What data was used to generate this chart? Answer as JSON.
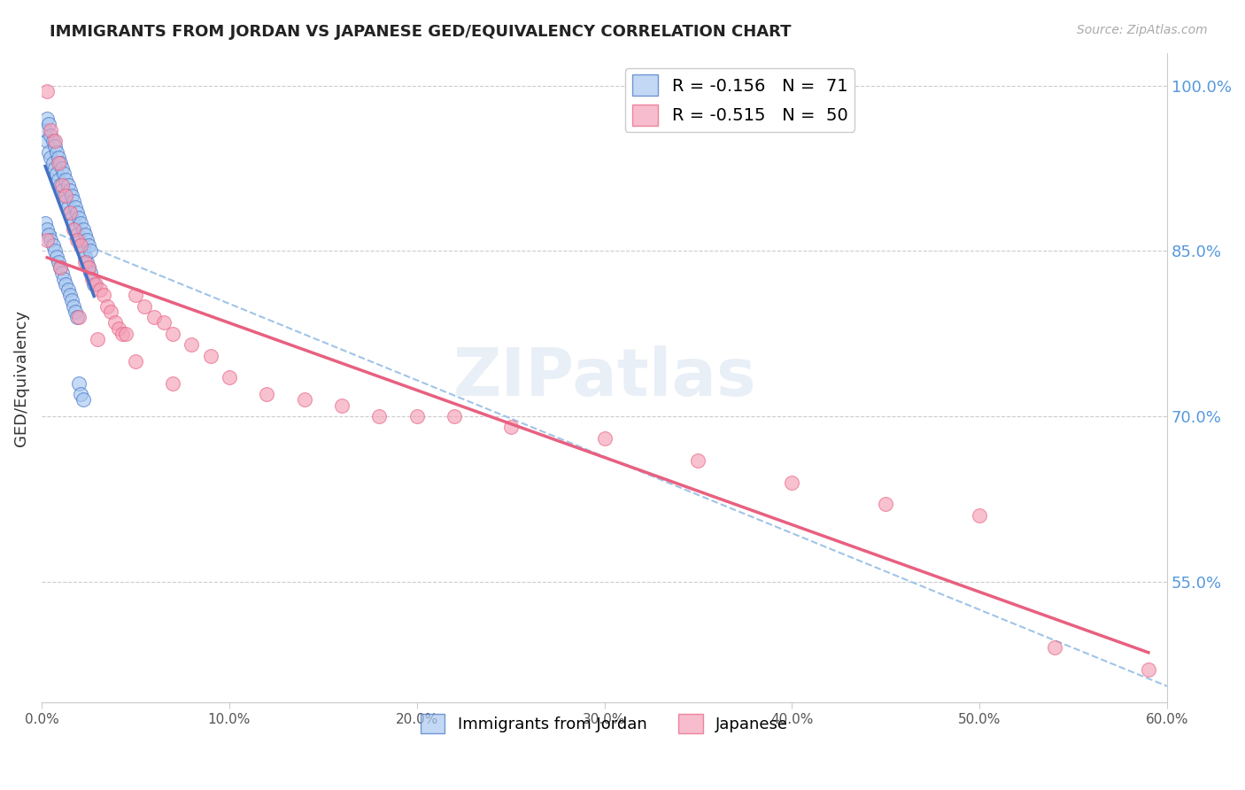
{
  "title": "IMMIGRANTS FROM JORDAN VS JAPANESE GED/EQUIVALENCY CORRELATION CHART",
  "source": "Source: ZipAtlas.com",
  "ylabel": "GED/Equivalency",
  "right_yticks": [
    1.0,
    0.85,
    0.7,
    0.55
  ],
  "right_ytick_labels": [
    "100.0%",
    "85.0%",
    "70.0%",
    "55.0%"
  ],
  "watermark": "ZIPatlas",
  "jordan_color": "#A8C8F0",
  "japanese_color": "#F4A0B8",
  "jordan_line_color": "#4472C4",
  "japanese_line_color": "#E86080",
  "dashed_line_color": "#A0C4E8",
  "jordan_scatter_x": [
    0.002,
    0.003,
    0.003,
    0.004,
    0.004,
    0.005,
    0.005,
    0.006,
    0.006,
    0.007,
    0.007,
    0.008,
    0.008,
    0.009,
    0.009,
    0.01,
    0.01,
    0.011,
    0.011,
    0.012,
    0.012,
    0.013,
    0.013,
    0.014,
    0.014,
    0.015,
    0.015,
    0.016,
    0.016,
    0.017,
    0.017,
    0.018,
    0.018,
    0.019,
    0.019,
    0.02,
    0.02,
    0.021,
    0.021,
    0.022,
    0.022,
    0.023,
    0.023,
    0.024,
    0.024,
    0.025,
    0.025,
    0.026,
    0.026,
    0.028,
    0.002,
    0.003,
    0.004,
    0.005,
    0.006,
    0.007,
    0.008,
    0.009,
    0.01,
    0.011,
    0.012,
    0.013,
    0.014,
    0.015,
    0.016,
    0.017,
    0.018,
    0.019,
    0.02,
    0.021,
    0.022
  ],
  "jordan_scatter_y": [
    0.96,
    0.97,
    0.95,
    0.965,
    0.94,
    0.955,
    0.935,
    0.95,
    0.93,
    0.945,
    0.925,
    0.94,
    0.92,
    0.935,
    0.915,
    0.93,
    0.91,
    0.925,
    0.905,
    0.92,
    0.9,
    0.915,
    0.895,
    0.91,
    0.89,
    0.905,
    0.885,
    0.9,
    0.88,
    0.895,
    0.875,
    0.89,
    0.87,
    0.885,
    0.865,
    0.88,
    0.86,
    0.875,
    0.855,
    0.87,
    0.85,
    0.865,
    0.845,
    0.86,
    0.84,
    0.855,
    0.835,
    0.85,
    0.83,
    0.82,
    0.875,
    0.87,
    0.865,
    0.86,
    0.855,
    0.85,
    0.845,
    0.84,
    0.835,
    0.83,
    0.825,
    0.82,
    0.815,
    0.81,
    0.805,
    0.8,
    0.795,
    0.79,
    0.73,
    0.72,
    0.715
  ],
  "japanese_scatter_x": [
    0.003,
    0.005,
    0.007,
    0.009,
    0.011,
    0.013,
    0.015,
    0.017,
    0.019,
    0.021,
    0.023,
    0.025,
    0.027,
    0.029,
    0.031,
    0.033,
    0.035,
    0.037,
    0.039,
    0.041,
    0.043,
    0.045,
    0.05,
    0.055,
    0.06,
    0.065,
    0.07,
    0.08,
    0.09,
    0.1,
    0.12,
    0.14,
    0.16,
    0.18,
    0.2,
    0.22,
    0.25,
    0.3,
    0.35,
    0.4,
    0.45,
    0.5,
    0.003,
    0.01,
    0.02,
    0.03,
    0.05,
    0.07,
    0.54,
    0.59
  ],
  "japanese_scatter_y": [
    0.995,
    0.96,
    0.95,
    0.93,
    0.91,
    0.9,
    0.885,
    0.87,
    0.86,
    0.855,
    0.84,
    0.835,
    0.825,
    0.82,
    0.815,
    0.81,
    0.8,
    0.795,
    0.785,
    0.78,
    0.775,
    0.775,
    0.81,
    0.8,
    0.79,
    0.785,
    0.775,
    0.765,
    0.755,
    0.735,
    0.72,
    0.715,
    0.71,
    0.7,
    0.7,
    0.7,
    0.69,
    0.68,
    0.66,
    0.64,
    0.62,
    0.61,
    0.86,
    0.835,
    0.79,
    0.77,
    0.75,
    0.73,
    0.49,
    0.47
  ],
  "xlim": [
    0.0,
    0.6
  ],
  "ylim": [
    0.44,
    1.03
  ],
  "background_color": "#FFFFFF",
  "jordan_legend_label": "R = -0.156   N =  71",
  "japanese_legend_label": "R = -0.515   N =  50",
  "bottom_legend_jordan": "Immigrants from Jordan",
  "bottom_legend_japanese": "Japanese"
}
